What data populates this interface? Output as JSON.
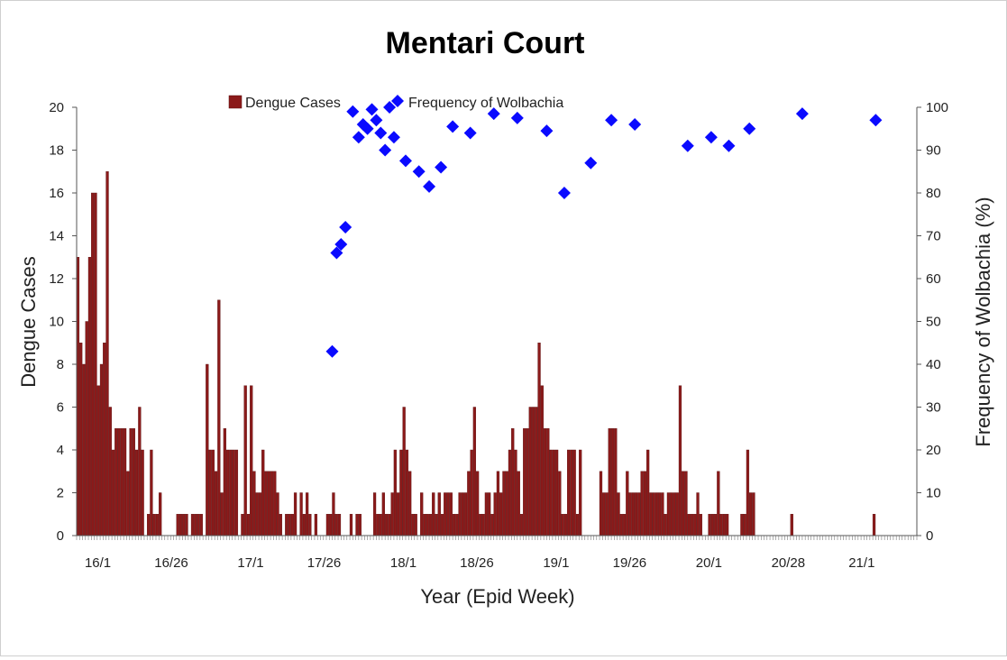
{
  "chart_data": {
    "type": "bar",
    "title": "Mentari Court",
    "xlabel": "Year (Epid Week)",
    "ylabel": "Dengue Cases",
    "y2label": "Frequency of Wolbachia (%)",
    "ylim": [
      0,
      20
    ],
    "y2lim": [
      0,
      100
    ],
    "yticks": [
      0,
      2,
      4,
      6,
      8,
      10,
      12,
      14,
      16,
      18,
      20
    ],
    "y2ticks": [
      0,
      10,
      20,
      30,
      40,
      50,
      60,
      70,
      80,
      90,
      100
    ],
    "grid": false,
    "legend_position": "top-center",
    "xlim": [
      0,
      286
    ],
    "x_tick_labels": [
      {
        "label": "16/1",
        "week": 6
      },
      {
        "label": "16/26",
        "week": 31
      },
      {
        "label": "17/1",
        "week": 58
      },
      {
        "label": "17/26",
        "week": 83
      },
      {
        "label": "18/1",
        "week": 110
      },
      {
        "label": "18/26",
        "week": 135
      },
      {
        "label": "19/1",
        "week": 162
      },
      {
        "label": "19/26",
        "week": 187
      },
      {
        "label": "20/1",
        "week": 214
      },
      {
        "label": "20/28",
        "week": 241
      },
      {
        "label": "21/1",
        "week": 266
      }
    ],
    "series": [
      {
        "name": "Dengue Cases",
        "type": "bar",
        "axis": "left",
        "color": "#8b1a1a",
        "values": [
          13,
          9,
          8,
          10,
          13,
          16,
          16,
          7,
          8,
          9,
          17,
          6,
          4,
          5,
          5,
          5,
          5,
          3,
          5,
          5,
          4,
          6,
          4,
          0,
          1,
          4,
          1,
          1,
          2,
          0,
          0,
          0,
          0,
          0,
          1,
          1,
          1,
          1,
          0,
          1,
          1,
          1,
          1,
          0,
          8,
          4,
          4,
          3,
          11,
          2,
          5,
          4,
          4,
          4,
          4,
          0,
          1,
          7,
          1,
          7,
          3,
          2,
          2,
          4,
          3,
          3,
          3,
          3,
          2,
          1,
          0,
          1,
          1,
          1,
          2,
          0,
          2,
          1,
          2,
          1,
          0,
          1,
          0,
          0,
          0,
          1,
          1,
          2,
          1,
          1,
          0,
          0,
          0,
          1,
          0,
          1,
          1,
          0,
          0,
          0,
          0,
          2,
          1,
          1,
          2,
          1,
          1,
          2,
          4,
          2,
          4,
          6,
          4,
          3,
          1,
          1,
          0,
          2,
          1,
          1,
          1,
          2,
          1,
          2,
          1,
          2,
          2,
          2,
          1,
          1,
          2,
          2,
          2,
          3,
          4,
          6,
          3,
          1,
          1,
          2,
          2,
          1,
          2,
          3,
          2,
          3,
          3,
          4,
          5,
          4,
          3,
          1,
          5,
          5,
          6,
          6,
          6,
          9,
          7,
          5,
          5,
          4,
          4,
          4,
          3,
          1,
          1,
          4,
          4,
          4,
          1,
          4,
          0,
          0,
          0,
          0,
          0,
          0,
          3,
          2,
          2,
          5,
          5,
          5,
          2,
          1,
          1,
          3,
          2,
          2,
          2,
          2,
          3,
          3,
          4,
          2,
          2,
          2,
          2,
          2,
          1,
          2,
          2,
          2,
          2,
          7,
          3,
          3,
          1,
          1,
          1,
          2,
          1,
          0,
          0,
          1,
          1,
          1,
          3,
          1,
          1,
          1,
          0,
          0,
          0,
          0,
          1,
          1,
          4,
          2,
          2,
          0,
          0,
          0,
          0,
          0,
          0,
          0,
          0,
          0,
          0,
          0,
          0,
          1,
          0,
          0,
          0,
          0,
          0,
          0,
          0,
          0,
          0,
          0,
          0,
          0,
          0,
          0,
          0,
          0,
          0,
          0,
          0,
          0,
          0,
          0,
          0,
          0,
          0,
          0,
          0,
          1,
          0,
          0,
          0,
          0,
          0,
          0,
          0,
          0,
          0,
          0,
          0,
          0,
          0,
          0,
          0,
          0,
          0,
          0,
          0
        ]
      },
      {
        "name": "Frequency of Wolbachia",
        "type": "scatter",
        "axis": "right",
        "color": "#0a0aff",
        "points": [
          {
            "x": 87,
            "y": 43
          },
          {
            "x": 88.5,
            "y": 66
          },
          {
            "x": 90,
            "y": 68
          },
          {
            "x": 91.5,
            "y": 72
          },
          {
            "x": 94,
            "y": 99
          },
          {
            "x": 96,
            "y": 93
          },
          {
            "x": 97.5,
            "y": 96
          },
          {
            "x": 99,
            "y": 95
          },
          {
            "x": 100.5,
            "y": 99.5
          },
          {
            "x": 102,
            "y": 97
          },
          {
            "x": 103.5,
            "y": 94
          },
          {
            "x": 105,
            "y": 90
          },
          {
            "x": 106.5,
            "y": 100
          },
          {
            "x": 108,
            "y": 93
          },
          {
            "x": 112,
            "y": 87.5
          },
          {
            "x": 116.5,
            "y": 85
          },
          {
            "x": 120,
            "y": 81.5
          },
          {
            "x": 124,
            "y": 86
          },
          {
            "x": 128,
            "y": 95.5
          },
          {
            "x": 134,
            "y": 94
          },
          {
            "x": 142,
            "y": 98.5
          },
          {
            "x": 150,
            "y": 97.5
          },
          {
            "x": 160,
            "y": 94.5
          },
          {
            "x": 166,
            "y": 80
          },
          {
            "x": 175,
            "y": 87
          },
          {
            "x": 182,
            "y": 97
          },
          {
            "x": 190,
            "y": 96
          },
          {
            "x": 208,
            "y": 91
          },
          {
            "x": 216,
            "y": 93
          },
          {
            "x": 222,
            "y": 91
          },
          {
            "x": 229,
            "y": 95
          },
          {
            "x": 247,
            "y": 98.5
          },
          {
            "x": 272,
            "y": 97
          }
        ]
      }
    ]
  }
}
